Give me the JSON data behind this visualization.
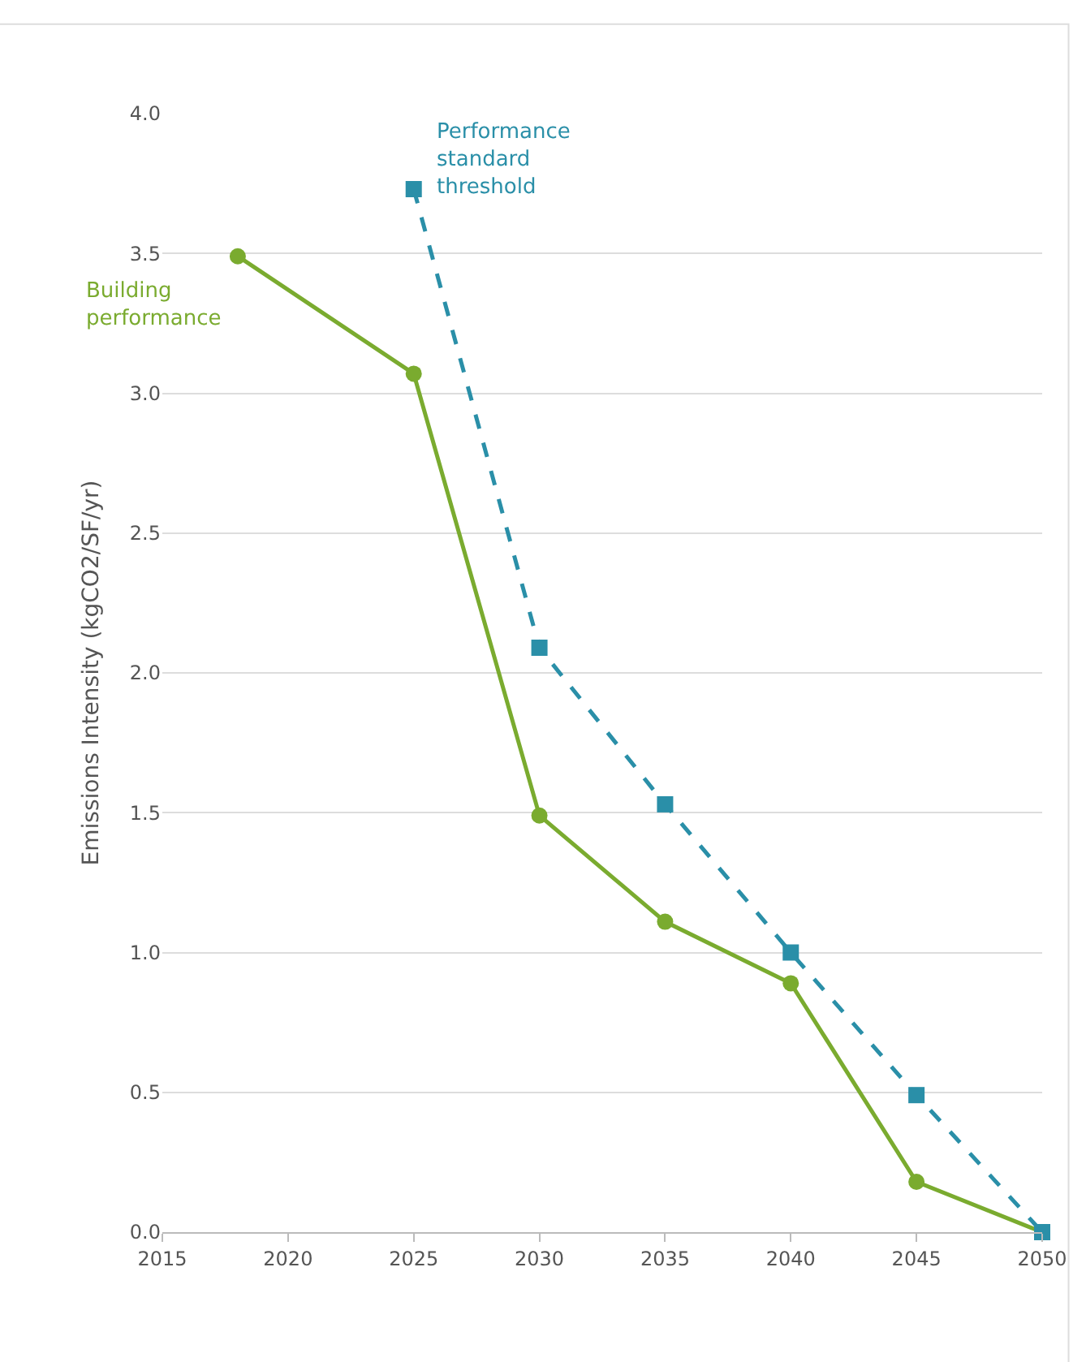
{
  "chart_data": {
    "type": "line",
    "ylabel": "Emissions Intensity (kgCO2/SF/yr)",
    "series": [
      {
        "name": "Building performance",
        "color": "#7aab2f",
        "marker": "circle",
        "line_style": "solid",
        "x": [
          2018,
          2025,
          2030,
          2035,
          2040,
          2045,
          2050
        ],
        "values": [
          3.49,
          3.07,
          1.49,
          1.11,
          0.89,
          0.18,
          0.0
        ]
      },
      {
        "name": "Performance standard threshold",
        "color": "#2a8fa8",
        "marker": "square",
        "line_style": "dashed",
        "x": [
          2025,
          2030,
          2035,
          2040,
          2045,
          2050
        ],
        "values": [
          3.73,
          2.09,
          1.53,
          1.0,
          0.49,
          0.0
        ]
      }
    ],
    "xlim": [
      2015,
      2050
    ],
    "xticks": [
      2015,
      2020,
      2025,
      2030,
      2035,
      2040,
      2045,
      2050
    ],
    "ylim": [
      0,
      4
    ],
    "yticks": [
      {
        "value": 0,
        "label": "0.0"
      },
      0.5,
      {
        "value": 1,
        "label": "1.0"
      },
      1.5,
      {
        "value": 2,
        "label": "2.0"
      },
      2.5,
      {
        "value": 3,
        "label": "3.0"
      },
      3.5,
      {
        "value": 4,
        "label": "4.0"
      }
    ],
    "grid": "y",
    "legend": false
  }
}
